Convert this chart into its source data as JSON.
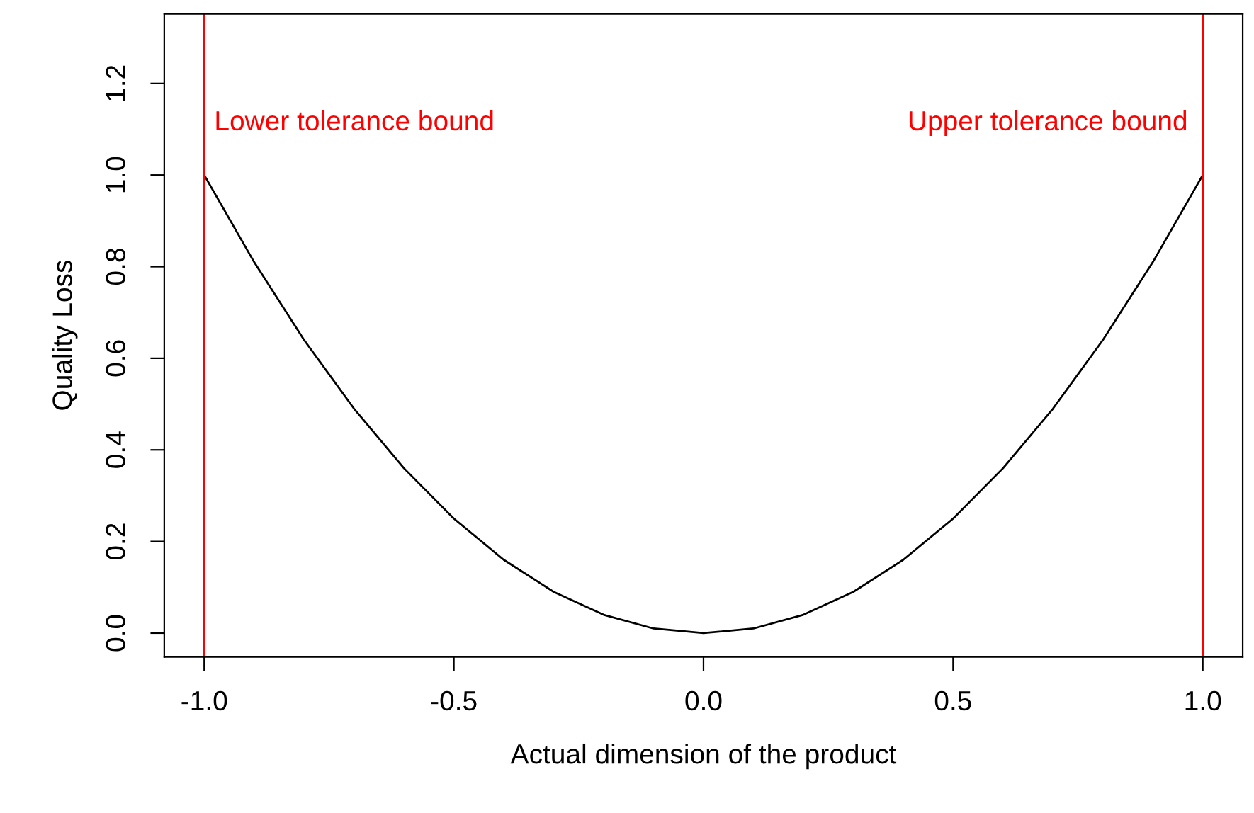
{
  "chart_data": {
    "type": "line",
    "xlabel": "Actual dimension of the product",
    "ylabel": "Quality Loss",
    "x": [
      -1.0,
      -0.9,
      -0.8,
      -0.7,
      -0.6,
      -0.5,
      -0.4,
      -0.3,
      -0.2,
      -0.1,
      0.0,
      0.1,
      0.2,
      0.3,
      0.4,
      0.5,
      0.6,
      0.7,
      0.8,
      0.9,
      1.0
    ],
    "series": [
      {
        "color": "#000000",
        "values": [
          1.0,
          0.81,
          0.64,
          0.49,
          0.36,
          0.25,
          0.16,
          0.09,
          0.04,
          0.01,
          0.0,
          0.01,
          0.04,
          0.09,
          0.16,
          0.25,
          0.36,
          0.49,
          0.64,
          0.81,
          1.0
        ]
      }
    ],
    "xlim": [
      -1.08,
      1.08
    ],
    "ylim": [
      -0.052,
      1.352
    ],
    "xticks": [
      {
        "value": -1.0,
        "label": "-1.0"
      },
      {
        "value": -0.5,
        "label": "-0.5"
      },
      {
        "value": 0.0,
        "label": "0.0"
      },
      {
        "value": 0.5,
        "label": "0.5"
      },
      {
        "value": 1.0,
        "label": "1.0"
      }
    ],
    "yticks": [
      {
        "value": 0.0,
        "label": "0.0"
      },
      {
        "value": 0.2,
        "label": "0.2"
      },
      {
        "value": 0.4,
        "label": "0.4"
      },
      {
        "value": 0.6,
        "label": "0.6"
      },
      {
        "value": 0.8,
        "label": "0.8"
      },
      {
        "value": 1.0,
        "label": "1.0"
      },
      {
        "value": 1.2,
        "label": "1.2"
      }
    ],
    "ref_lines": [
      {
        "axis": "x",
        "value": -1.0,
        "label": "Lower tolerance bound",
        "color": "#ff0000"
      },
      {
        "axis": "x",
        "value": 1.0,
        "label": "Upper tolerance bound",
        "color": "#ff0000"
      }
    ],
    "grid": false,
    "legend": false,
    "marker": "none",
    "line_style": "solid"
  }
}
